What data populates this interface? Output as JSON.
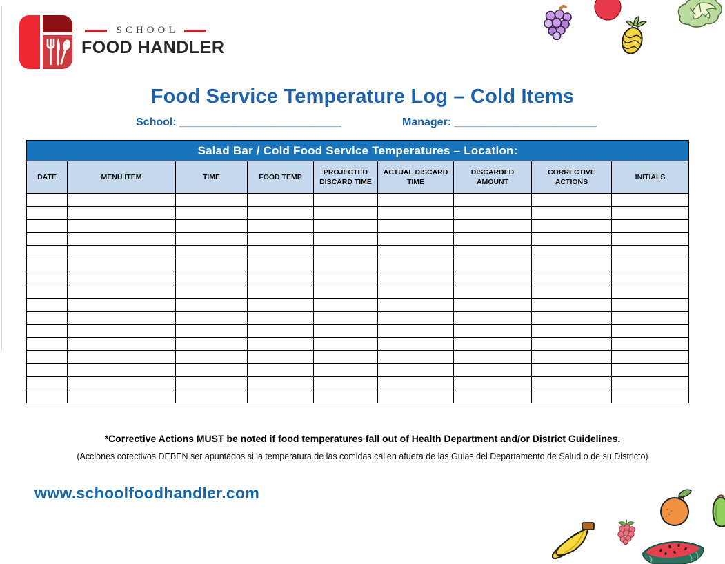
{
  "page": {
    "title": "Food Service Temperature Log – Cold Items",
    "website": "www.schoolfoodhandler.com"
  },
  "logo": {
    "line1": "SCHOOL",
    "line2": "FOOD HANDLER"
  },
  "fields": {
    "school_label": "School:",
    "school_value": "",
    "school_blank": "_________________________",
    "manager_label": "Manager:",
    "manager_value": "",
    "manager_blank": "______________________"
  },
  "table": {
    "banner": "Salad Bar / Cold Food Service Temperatures – Location:",
    "columns": [
      "DATE",
      "MENU ITEM",
      "TIME",
      "FOOD TEMP",
      "PROJECTED DISCARD TIME",
      "ACTUAL DISCARD TIME",
      "DISCARDED AMOUNT",
      "CORRECTIVE ACTIONS",
      "INITIALS"
    ],
    "row_count": 16,
    "rows": []
  },
  "notes": {
    "english": "*Corrective Actions MUST be noted if food temperatures fall out of Health Department and/or District Guidelines.",
    "spanish": "(Acciones corectivos DEBEN ser apuntados si la temperatura de las comidas callen afuera de las Guias del Departamento de Salud o de su Districto)"
  },
  "icons": {
    "logo": "school-food-handler-logo",
    "top_right": [
      "grapes-icon",
      "tomato-icon",
      "pineapple-icon",
      "lettuce-icon"
    ],
    "bottom_right": [
      "banana-icon",
      "raspberry-icon",
      "orange-icon",
      "watermelon-icon",
      "green-pepper-icon"
    ]
  },
  "colors": {
    "title_blue": "#1d61a9",
    "banner_blue": "#1a74bc",
    "header_light_blue": "#c6d9ef",
    "link_blue": "#1766a8",
    "logo_bright_red": "#ee2833",
    "logo_dark_red": "#8c0f13",
    "logo_mid_red": "#cc3a40",
    "table_border": "#000000"
  }
}
